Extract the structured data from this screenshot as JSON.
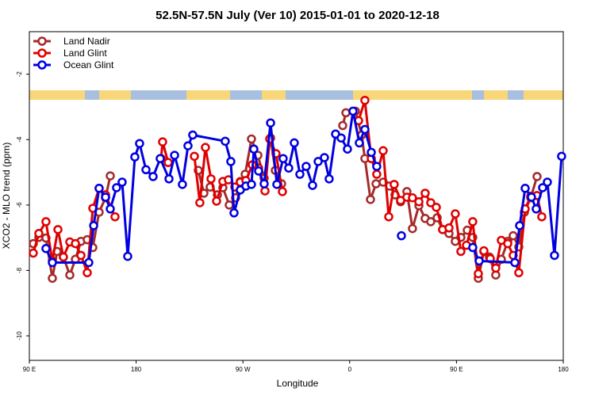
{
  "chart_data": {
    "type": "line",
    "title": "52.5N-57.5N July (Ver 10)   2015-01-01 to 2020-12-18",
    "x_label": "Longitude",
    "y_label": "XCO2 - MLO trend (ppm)",
    "xlim": [
      90,
      540
    ],
    "ylim": [
      -10.75,
      -0.7
    ],
    "xticks": [
      {
        "value": 90,
        "label": "90 E"
      },
      180,
      {
        "value": 270,
        "label": "90 W"
      },
      {
        "value": 360,
        "label": "0"
      },
      {
        "value": 450,
        "label": "90 E"
      },
      {
        "value": 540,
        "label": "180"
      }
    ],
    "yticks": [
      -2,
      -4,
      -6,
      -8,
      -10
    ],
    "legend": "top-left",
    "series": [
      {
        "name": "Land Nadir",
        "color": "#a52a2a",
        "x": [
          93.3,
          98.0,
          104.0,
          109.4,
          113.4,
          118.7,
          124.1,
          128.8,
          133.5,
          138.8,
          143.5,
          148.8,
          154.2,
          158.2,
          null,
          232.4,
          237.1,
          242.4,
          248.5,
          253.1,
          258.5,
          263.8,
          267.8,
          271.9,
          277.2,
          282.6,
          287.9,
          293.3,
          297.3,
          302.6,
          null,
          354.1,
          356.8,
          364.8,
          370.1,
          372.8,
          377.5,
          382.2,
          388.2,
          393.5,
          398.2,
          402.9,
          408.2,
          412.9,
          418.3,
          423.6,
          428.3,
          433.7,
          438.3,
          443.7,
          449.0,
          453.7,
          459.1,
          463.7,
          468.4,
          473.1,
          477.8,
          483.1,
          487.8,
          493.2,
          497.8,
          502.5,
          507.2,
          512.6,
          517.9
        ],
        "values": [
          -7.18,
          -6.99,
          -7.01,
          -8.24,
          -7.42,
          -7.59,
          -8.14,
          -7.66,
          -7.11,
          -7.06,
          -7.3,
          -6.22,
          -5.78,
          -5.11,
          null,
          -4.94,
          -5.64,
          -5.45,
          -5.69,
          -5.47,
          -6.0,
          -5.78,
          -5.28,
          -5.06,
          -3.98,
          -4.48,
          -5.18,
          -3.95,
          -4.94,
          -5.35,
          null,
          -3.57,
          -3.18,
          -3.13,
          -3.86,
          -4.58,
          -5.83,
          -5.35,
          -5.3,
          -5.42,
          -5.69,
          -5.9,
          -5.59,
          -6.72,
          -6.02,
          -6.41,
          -6.51,
          -6.39,
          -6.75,
          -6.87,
          -7.11,
          -6.99,
          -6.77,
          -6.99,
          -8.24,
          -7.42,
          -7.59,
          -8.14,
          -7.66,
          -7.11,
          -6.94,
          -7.28,
          -6.22,
          -5.78,
          -5.13
        ]
      },
      {
        "name": "Land Glint",
        "color": "#e00000",
        "x": [
          93.3,
          98.0,
          104.0,
          109.4,
          114.1,
          118.7,
          124.1,
          128.8,
          133.5,
          138.8,
          143.5,
          148.8,
          154.2,
          162.2,
          null,
          201.0,
          202.3,
          207.0,
          null,
          229.1,
          233.7,
          238.4,
          243.1,
          247.8,
          253.1,
          257.8,
          263.2,
          267.8,
          272.5,
          277.9,
          283.2,
          288.6,
          292.6,
          297.9,
          303.3,
          null,
          367.5,
          372.8,
          378.2,
          382.8,
          388.2,
          392.9,
          397.5,
          402.9,
          408.2,
          412.9,
          418.3,
          423.6,
          428.3,
          433.0,
          438.3,
          443.7,
          449.0,
          453.7,
          458.4,
          463.7,
          468.4,
          473.1,
          478.5,
          483.1,
          487.8,
          493.2,
          497.8,
          502.5,
          507.9,
          512.6,
          517.9,
          521.9
        ],
        "values": [
          -7.47,
          -6.87,
          -6.51,
          -7.71,
          -6.75,
          -7.59,
          -7.13,
          -7.18,
          -7.54,
          -8.07,
          -6.1,
          -5.49,
          -5.69,
          -6.36,
          null,
          -4.58,
          -4.07,
          -4.7,
          null,
          -4.51,
          -5.93,
          -4.24,
          -5.2,
          -5.88,
          -5.28,
          -5.23,
          -5.45,
          -5.3,
          -5.25,
          -4.77,
          -4.87,
          -5.57,
          -3.98,
          -4.43,
          -5.59,
          null,
          -3.42,
          -2.8,
          -4.58,
          -5.06,
          -4.34,
          -6.36,
          -5.37,
          -5.86,
          -5.76,
          -5.78,
          -5.9,
          -5.64,
          -5.93,
          -6.07,
          -6.75,
          -6.7,
          -6.27,
          -7.42,
          -7.23,
          -6.51,
          -8.1,
          -7.4,
          -7.64,
          -7.93,
          -7.08,
          -7.18,
          -7.54,
          -8.07,
          -6.12,
          -5.73,
          -5.71,
          -6.36
        ]
      },
      {
        "name": "Ocean Glint",
        "color": "#0000e0",
        "x": [
          104.0,
          109.4,
          140.1,
          144.2,
          148.8,
          154.2,
          158.2,
          163.5,
          168.2,
          172.9,
          178.9,
          182.9,
          188.3,
          194.3,
          200.3,
          207.7,
          212.4,
          219.0,
          223.7,
          227.7,
          255.1,
          259.8,
          262.5,
          267.8,
          272.5,
          277.2,
          279.2,
          283.2,
          287.9,
          293.3,
          298.6,
          303.9,
          308.6,
          313.3,
          318.0,
          323.3,
          328.7,
          333.4,
          338.7,
          342.7,
          348.1,
          352.8,
          358.1,
          362.8,
          368.1,
          372.8,
          378.2,
          382.8,
          null,
          403.6,
          null,
          463.7,
          469.1,
          499.2,
          503.2,
          507.9,
          513.2,
          517.2,
          522.6,
          526.6,
          532.6,
          538.6
        ],
        "values": [
          -7.33,
          -7.76,
          -7.76,
          -6.63,
          -5.49,
          -5.76,
          -6.12,
          -5.47,
          -5.3,
          -7.57,
          -4.53,
          -4.12,
          -4.92,
          -5.13,
          -4.58,
          -5.2,
          -4.48,
          -5.37,
          -4.19,
          -3.86,
          -4.05,
          -4.67,
          -6.24,
          -5.54,
          -5.42,
          -5.37,
          -4.29,
          -4.96,
          -5.35,
          -3.49,
          -5.37,
          -4.58,
          -4.87,
          -4.1,
          -5.06,
          -4.82,
          -5.4,
          -4.67,
          -4.55,
          -5.2,
          -3.83,
          -3.95,
          -4.29,
          -3.13,
          -4.1,
          -3.69,
          -4.39,
          -4.82,
          null,
          -6.94,
          null,
          -7.3,
          -7.71,
          -7.76,
          -6.63,
          -5.49,
          -5.76,
          -6.12,
          -5.47,
          -5.3,
          -7.54,
          -4.51
        ]
      }
    ]
  }
}
